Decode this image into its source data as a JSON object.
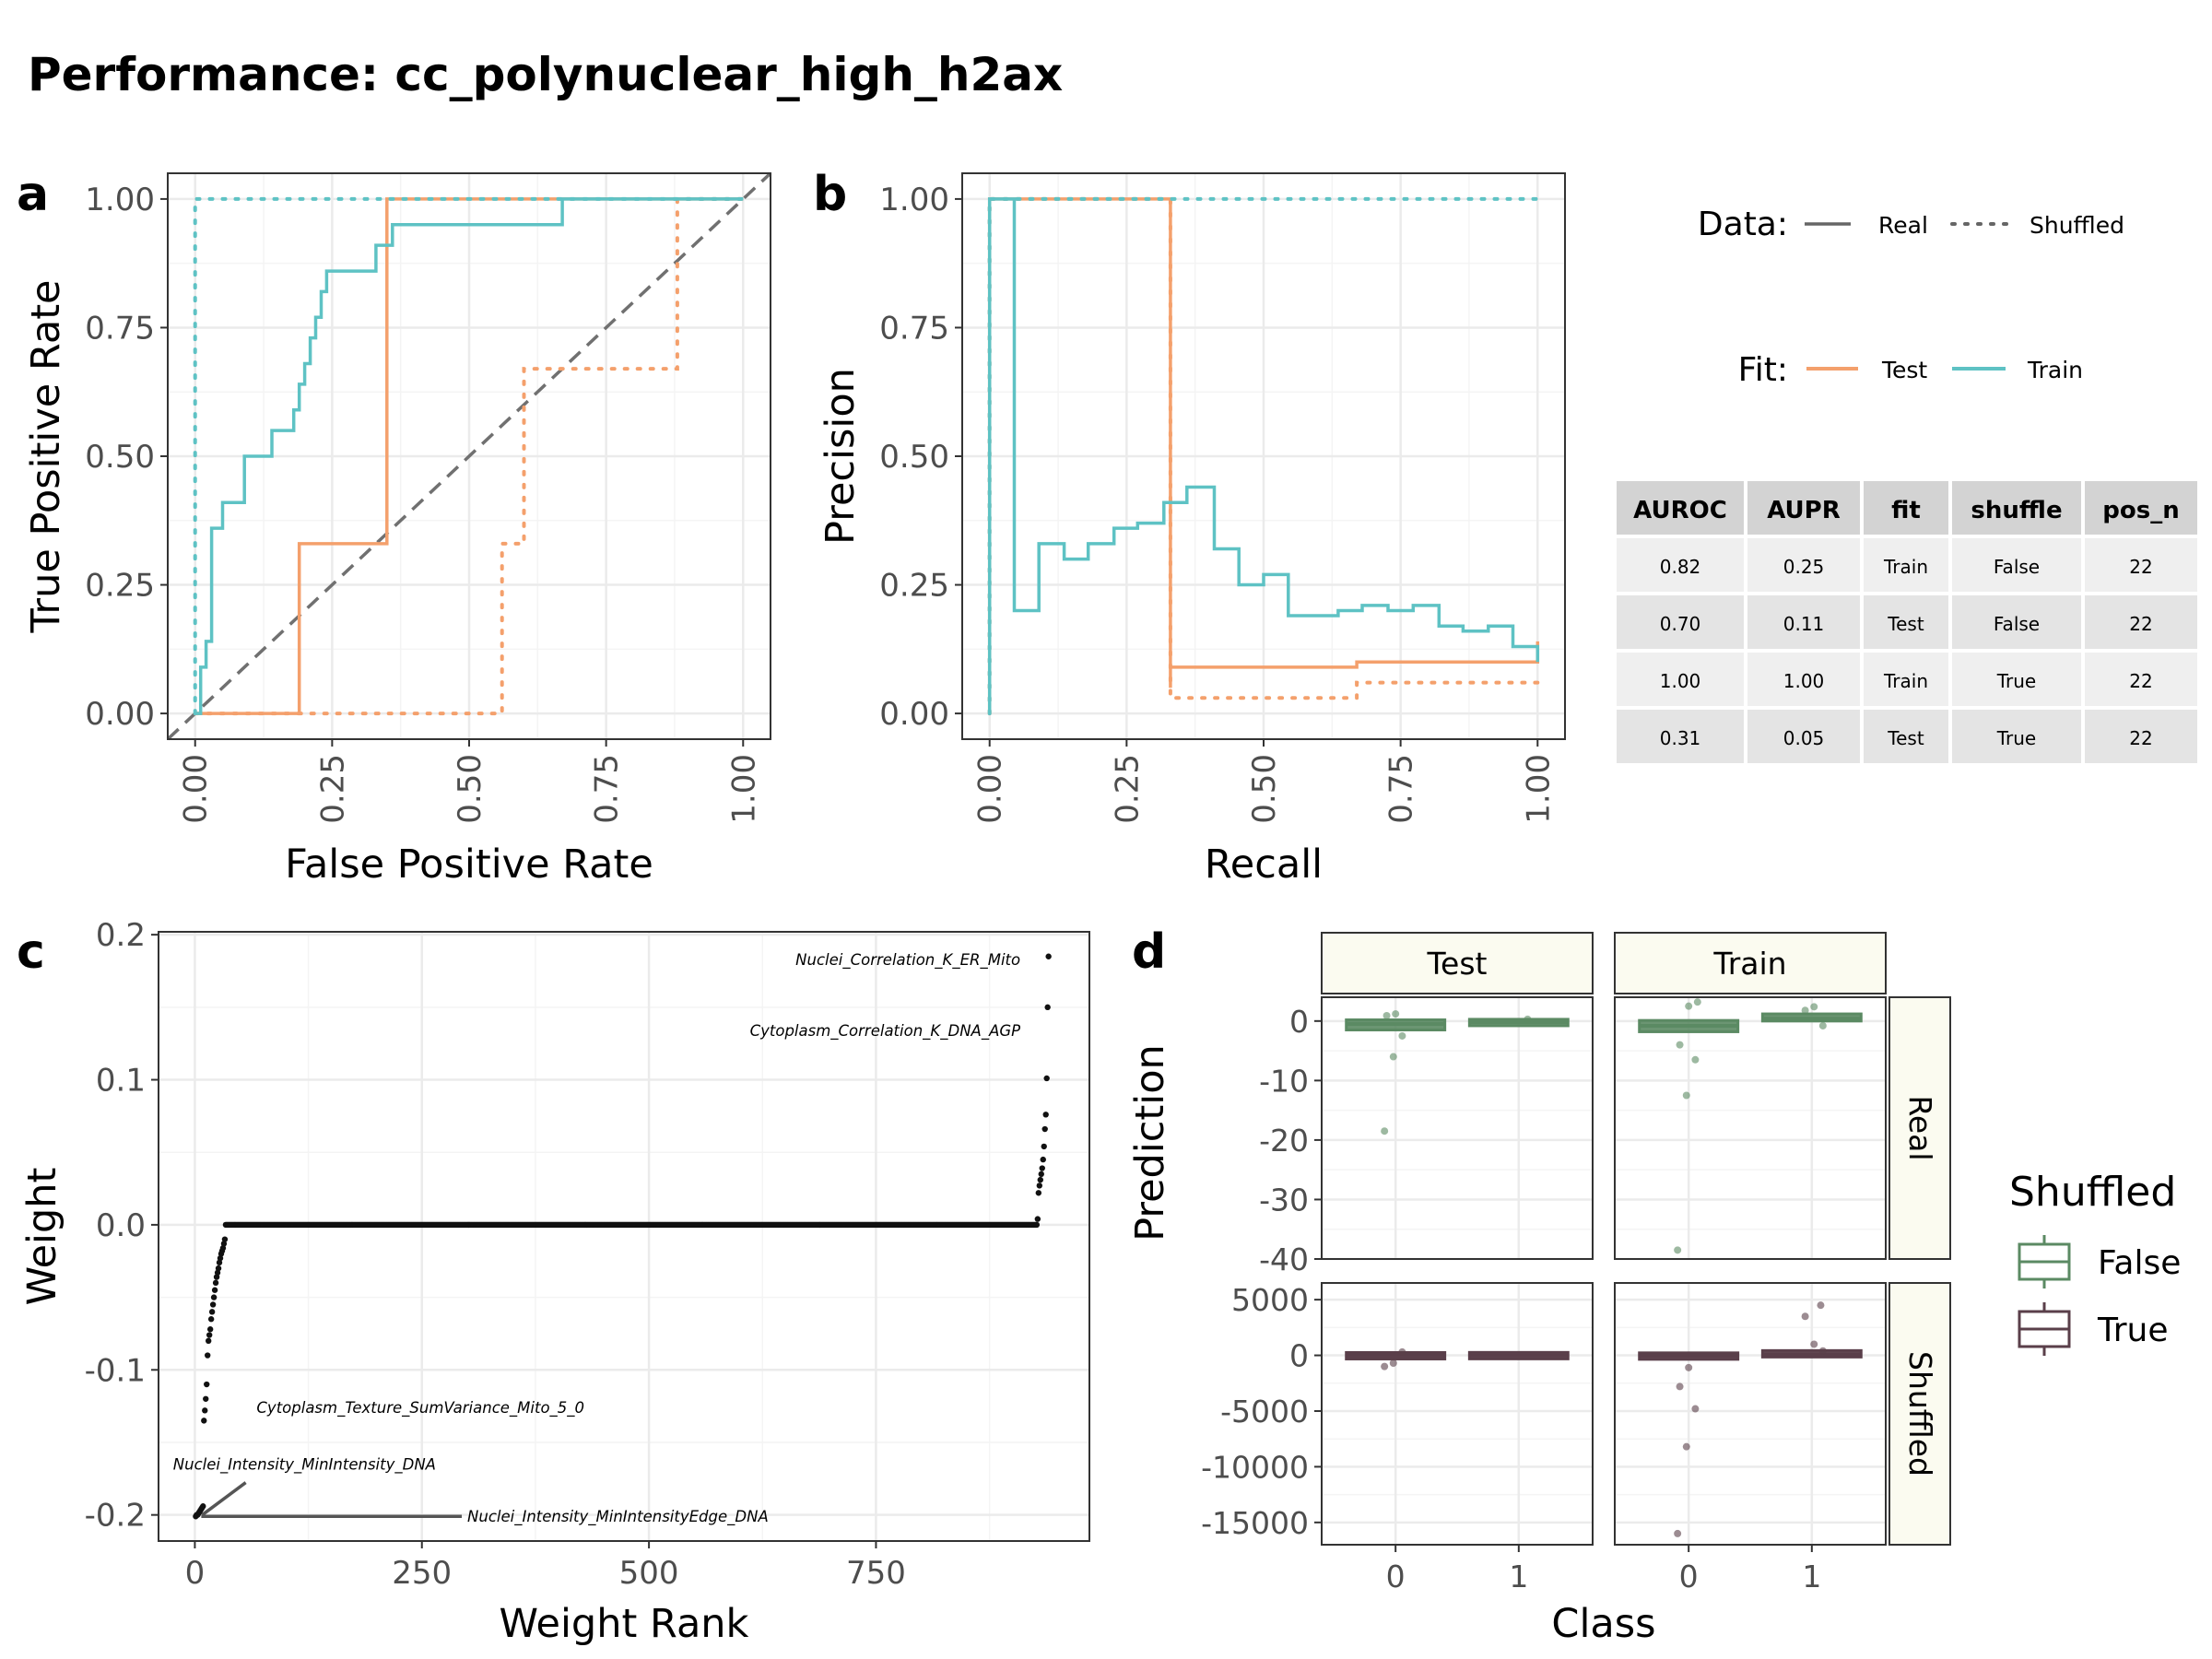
{
  "title": "Performance: cc_polynuclear_high_h2ax",
  "panel_letters": [
    "a",
    "b",
    "c",
    "d"
  ],
  "colors": {
    "test": "#f4a06c",
    "train": "#5ec2c4",
    "diag": "#707070",
    "shuffled_false": "#5b8a63",
    "shuffled_true": "#5a3f4a",
    "strip_fill": "#fbfbf0"
  },
  "legends": {
    "data_title": "Data:",
    "data_items": [
      "Real",
      "Shuffled"
    ],
    "fit_title": "Fit:",
    "fit_items": [
      "Test",
      "Train"
    ],
    "shuffled_title": "Shuffled",
    "shuffled_items": [
      "False",
      "True"
    ]
  },
  "metrics_table": {
    "headers": [
      "AUROC",
      "AUPR",
      "fit",
      "shuffle",
      "pos_n"
    ],
    "rows": [
      [
        "0.82",
        "0.25",
        "Train",
        "False",
        "22"
      ],
      [
        "0.70",
        "0.11",
        "Test",
        "False",
        "22"
      ],
      [
        "1.00",
        "1.00",
        "Train",
        "True",
        "22"
      ],
      [
        "0.31",
        "0.05",
        "Test",
        "True",
        "22"
      ]
    ]
  },
  "chart_data": [
    {
      "id": "a",
      "type": "line",
      "xlabel": "False Positive Rate",
      "ylabel": "True Positive Rate",
      "xlim": [
        -0.05,
        1.05
      ],
      "ylim": [
        -0.05,
        1.05
      ],
      "xticks": [
        "0.00",
        "0.25",
        "0.50",
        "0.75",
        "1.00"
      ],
      "yticks": [
        "0.00",
        "0.25",
        "0.50",
        "0.75",
        "1.00"
      ],
      "reference_line": "diagonal",
      "series": [
        {
          "fit": "Test",
          "data": "Real",
          "x": [
            0,
            0.19,
            0.19,
            0.35,
            0.35,
            1.0
          ],
          "y": [
            0,
            0,
            0.33,
            0.33,
            1.0,
            1.0
          ]
        },
        {
          "fit": "Test",
          "data": "Shuffled",
          "x": [
            0,
            0.56,
            0.56,
            0.6,
            0.6,
            0.88,
            0.88,
            1.0
          ],
          "y": [
            0,
            0,
            0.33,
            0.33,
            0.67,
            0.67,
            1.0,
            1.0
          ]
        },
        {
          "fit": "Train",
          "data": "Real",
          "x": [
            0,
            0.01,
            0.01,
            0.02,
            0.02,
            0.03,
            0.03,
            0.05,
            0.05,
            0.09,
            0.09,
            0.14,
            0.14,
            0.18,
            0.18,
            0.19,
            0.19,
            0.2,
            0.2,
            0.21,
            0.21,
            0.22,
            0.22,
            0.23,
            0.23,
            0.24,
            0.24,
            0.33,
            0.33,
            0.34,
            0.34,
            0.36,
            0.36,
            0.52,
            0.52,
            0.67,
            0.67,
            1.0
          ],
          "y": [
            0,
            0,
            0.09,
            0.09,
            0.14,
            0.14,
            0.36,
            0.36,
            0.41,
            0.41,
            0.5,
            0.5,
            0.55,
            0.55,
            0.59,
            0.59,
            0.64,
            0.64,
            0.68,
            0.68,
            0.73,
            0.73,
            0.77,
            0.77,
            0.82,
            0.82,
            0.86,
            0.86,
            0.91,
            0.91,
            0.91,
            0.91,
            0.95,
            0.95,
            0.95,
            0.95,
            1.0,
            1.0
          ]
        },
        {
          "fit": "Train",
          "data": "Shuffled",
          "x": [
            0,
            0,
            1.0
          ],
          "y": [
            0,
            1.0,
            1.0
          ]
        }
      ]
    },
    {
      "id": "b",
      "type": "line",
      "xlabel": "Recall",
      "ylabel": "Precision",
      "xlim": [
        -0.05,
        1.05
      ],
      "ylim": [
        -0.05,
        1.05
      ],
      "xticks": [
        "0.00",
        "0.25",
        "0.50",
        "0.75",
        "1.00"
      ],
      "yticks": [
        "0.00",
        "0.25",
        "0.50",
        "0.75",
        "1.00"
      ],
      "series": [
        {
          "fit": "Test",
          "data": "Real",
          "x": [
            0,
            0,
            0.33,
            0.33,
            0.33,
            0.33,
            0.67,
            0.67,
            1.0,
            1.0
          ],
          "y": [
            0,
            1.0,
            1.0,
            0.05,
            0.05,
            0.09,
            0.09,
            0.1,
            0.1,
            0.14
          ]
        },
        {
          "fit": "Test",
          "data": "Shuffled",
          "x": [
            0,
            0,
            0.33,
            0.33,
            0.67,
            0.67,
            1.0
          ],
          "y": [
            0,
            1.0,
            1.0,
            0.03,
            0.03,
            0.06,
            0.06
          ]
        },
        {
          "fit": "Train",
          "data": "Real",
          "x": [
            0,
            0,
            0.045,
            0.045,
            0.09,
            0.09,
            0.136,
            0.136,
            0.18,
            0.18,
            0.227,
            0.227,
            0.27,
            0.27,
            0.318,
            0.318,
            0.36,
            0.36,
            0.41,
            0.41,
            0.455,
            0.455,
            0.5,
            0.5,
            0.545,
            0.545,
            0.59,
            0.59,
            0.636,
            0.636,
            0.68,
            0.68,
            0.727,
            0.727,
            0.773,
            0.773,
            0.82,
            0.82,
            0.864,
            0.864,
            0.91,
            0.91,
            0.955,
            0.955,
            1.0,
            1.0
          ],
          "y": [
            0,
            1.0,
            1.0,
            0.2,
            0.2,
            0.33,
            0.33,
            0.3,
            0.3,
            0.33,
            0.33,
            0.36,
            0.36,
            0.37,
            0.37,
            0.41,
            0.41,
            0.44,
            0.44,
            0.32,
            0.32,
            0.25,
            0.25,
            0.27,
            0.27,
            0.19,
            0.19,
            0.19,
            0.19,
            0.2,
            0.2,
            0.21,
            0.21,
            0.2,
            0.2,
            0.21,
            0.21,
            0.17,
            0.17,
            0.16,
            0.16,
            0.17,
            0.17,
            0.13,
            0.13,
            0.1
          ]
        },
        {
          "fit": "Train",
          "data": "Shuffled",
          "x": [
            0,
            0,
            1.0
          ],
          "y": [
            0,
            1.0,
            1.0
          ]
        }
      ]
    },
    {
      "id": "c",
      "type": "scatter",
      "xlabel": "Weight Rank",
      "ylabel": "Weight",
      "xlim": [
        -40,
        985
      ],
      "ylim": [
        -0.218,
        0.202
      ],
      "xticks": [
        0,
        250,
        500,
        750
      ],
      "yticks": [
        {
          "v": 0.2,
          "label": "0.2"
        },
        {
          "v": 0.1,
          "label": "0.1"
        },
        {
          "v": 0.0,
          "label": "0.0"
        },
        {
          "v": -0.1,
          "label": "-0.1"
        },
        {
          "v": -0.2,
          "label": "-0.2"
        }
      ],
      "n_points": 940,
      "low_tail": [
        -0.201,
        -0.2,
        -0.2,
        -0.199,
        -0.198,
        -0.197,
        -0.196,
        -0.195,
        -0.194,
        -0.135,
        -0.128,
        -0.12,
        -0.11,
        -0.09,
        -0.08,
        -0.076,
        -0.072,
        -0.065,
        -0.06,
        -0.055,
        -0.05,
        -0.045,
        -0.04,
        -0.036,
        -0.033,
        -0.03,
        -0.026,
        -0.023,
        -0.02,
        -0.018,
        -0.016,
        -0.013,
        -0.01
      ],
      "high_tail": [
        0.004,
        0.022,
        0.027,
        0.031,
        0.035,
        0.039,
        0.045,
        0.054,
        0.066,
        0.076,
        0.101,
        0.15,
        0.185
      ],
      "annotations": [
        {
          "label": "Nuclei_Correlation_K_ER_Mito",
          "rank": 939,
          "weight": 0.185,
          "lx": 909,
          "ly": 0.183,
          "anchor": "end"
        },
        {
          "label": "Cytoplasm_Correlation_K_DNA_AGP",
          "rank": 938,
          "weight": 0.15,
          "lx": 909,
          "ly": 0.134,
          "anchor": "end"
        },
        {
          "label": "Cytoplasm_Texture_SumVariance_Mito_5_0",
          "rank": 10,
          "weight": -0.135,
          "lx": 68,
          "ly": -0.126,
          "anchor": "start"
        },
        {
          "label": "Nuclei_Intensity_MinIntensity_DNA",
          "rank": 2,
          "weight": -0.2,
          "lx": -24,
          "ly": -0.165,
          "anchor": "start",
          "leader": true
        },
        {
          "label": "Nuclei_Intensity_MinIntensityEdge_DNA",
          "rank": 1,
          "weight": -0.201,
          "lx": 300,
          "ly": -0.201,
          "anchor": "start",
          "leader": true
        }
      ]
    },
    {
      "id": "d",
      "type": "box",
      "xlabel": "Class",
      "ylabel": "Prediction",
      "columns": [
        "Test",
        "Train"
      ],
      "rows": [
        "Real",
        "Shuffled"
      ],
      "categories": [
        "0",
        "1"
      ],
      "xlim": [
        -0.6,
        1.6
      ],
      "row_scales": [
        {
          "ylim": [
            -40,
            4
          ],
          "ticks": [
            0,
            -10,
            -20,
            -30,
            -40
          ]
        },
        {
          "ylim": [
            -17000,
            6500
          ],
          "ticks": [
            5000,
            0,
            -5000,
            -10000,
            -15000
          ],
          "tick_labels": [
            "5000",
            "0",
            "-5000",
            "-10000",
            "-15000"
          ]
        }
      ],
      "panels": [
        {
          "row": 0,
          "col": 0,
          "shuffled": "False",
          "boxes": [
            {
              "cls": 0,
              "q1": -1.5,
              "med": -0.5,
              "q3": 0.2
            },
            {
              "cls": 1,
              "q1": -0.6,
              "med": -0.2,
              "q3": 0.1
            }
          ],
          "points": [
            [
              0,
              -18.5
            ],
            [
              0,
              -6
            ],
            [
              0,
              -2.5
            ],
            [
              0,
              0.9
            ],
            [
              0,
              1.2
            ],
            [
              1,
              0.3
            ]
          ]
        },
        {
          "row": 0,
          "col": 1,
          "shuffled": "False",
          "boxes": [
            {
              "cls": 0,
              "q1": -1.8,
              "med": -0.8,
              "q3": 0.1
            },
            {
              "cls": 1,
              "q1": 0.0,
              "med": 0.4,
              "q3": 1.2
            }
          ],
          "points": [
            [
              0,
              -38.5
            ],
            [
              0,
              -12.5
            ],
            [
              0,
              -6.5
            ],
            [
              0,
              -4
            ],
            [
              0,
              2.5
            ],
            [
              0,
              3.2
            ],
            [
              1,
              1.8
            ],
            [
              1,
              2.4
            ],
            [
              1,
              -0.8
            ]
          ]
        },
        {
          "row": 1,
          "col": 0,
          "shuffled": "True",
          "boxes": [
            {
              "cls": 0,
              "q1": -150,
              "med": -30,
              "q3": 80
            },
            {
              "cls": 1,
              "q1": -120,
              "med": -20,
              "q3": 70
            }
          ],
          "points": [
            [
              0,
              -1000
            ],
            [
              0,
              -700
            ],
            [
              0,
              300
            ]
          ]
        },
        {
          "row": 1,
          "col": 1,
          "shuffled": "True",
          "boxes": [
            {
              "cls": 0,
              "q1": -250,
              "med": -50,
              "q3": 120
            },
            {
              "cls": 1,
              "q1": -20,
              "med": 100,
              "q3": 300
            }
          ],
          "points": [
            [
              0,
              -16000
            ],
            [
              0,
              -8200
            ],
            [
              0,
              -4800
            ],
            [
              0,
              -2800
            ],
            [
              0,
              -1100
            ],
            [
              1,
              4500
            ],
            [
              1,
              3500
            ],
            [
              1,
              1000
            ],
            [
              1,
              400
            ]
          ]
        }
      ]
    }
  ]
}
